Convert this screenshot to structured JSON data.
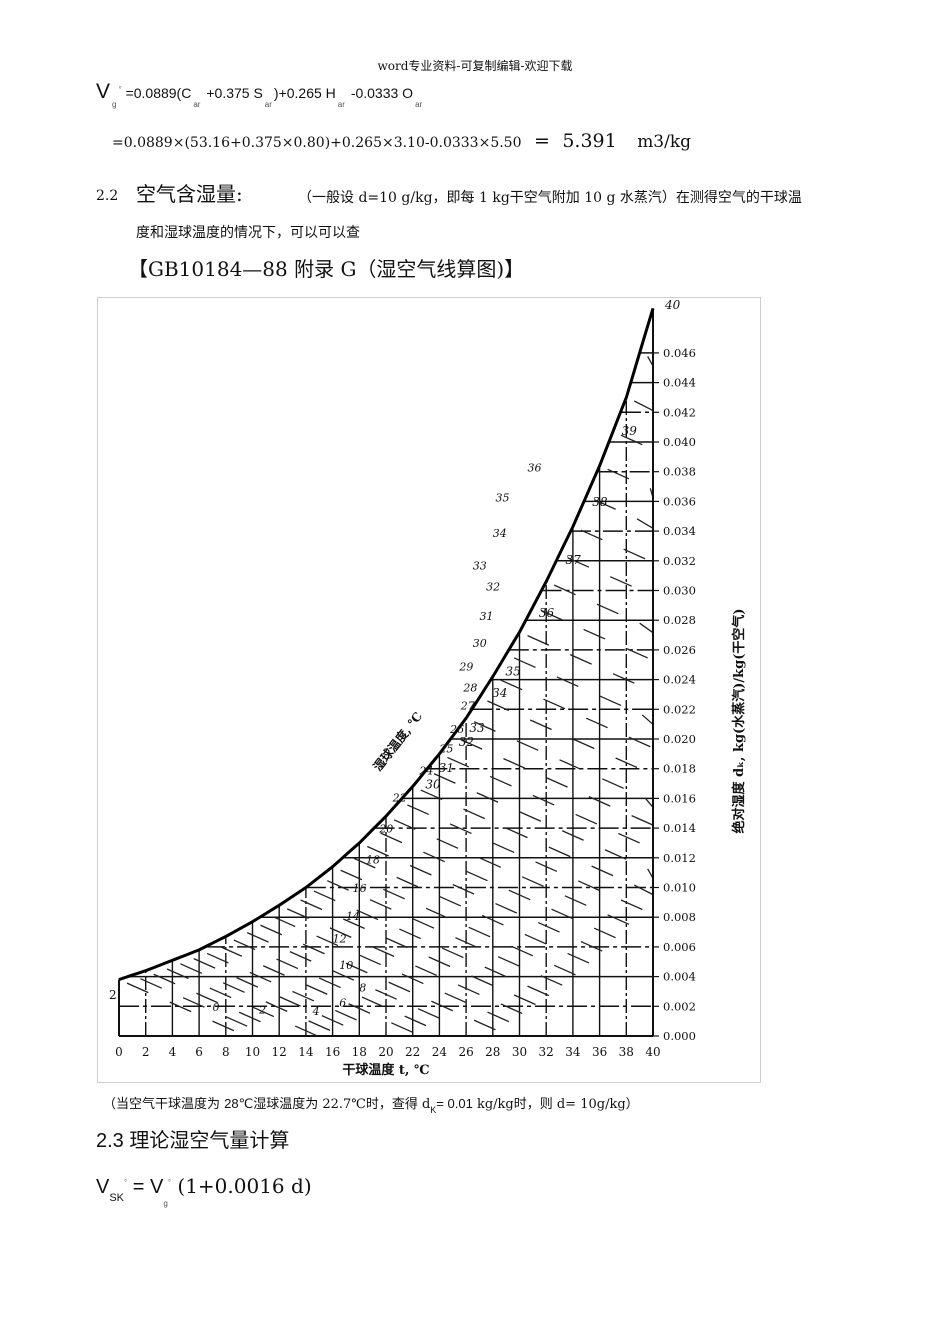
{
  "page_header": "word专业资料-可复制编辑-欢迎下载",
  "formula_1": {
    "lhs": "V",
    "lhs_sub": "g",
    "lhs_sup": "°",
    "expr_parts": [
      "=0.0889(C",
      "+0.375 S",
      ")+0.265 H",
      "-0.0333 O"
    ],
    "sub_ar": "ar"
  },
  "formula_2": {
    "expr": "=0.0889×(53.16+0.375×0.80)+0.265×3.10-0.0333×5.50",
    "equals": "=",
    "result": "5.391",
    "unit": "m3/kg"
  },
  "section_2_2": {
    "number": "2.2",
    "title": "空气含湿量:",
    "description_line1": "（一般设 d=10 g/kg，即每 1 kg干空气附加 10 g 水蒸汽）在测得空气的干球温",
    "description_line2": "度和湿球温度的情况下，可以可以查",
    "reference": "【GB10184—88 附录 G（湿空气线算图)】"
  },
  "chart_data": {
    "type": "line",
    "title": "湿空气线算图 (GB10184—88 附录G)",
    "xlabel": "干球温度 t, ℃",
    "ylabel": "绝对湿度 dₖ, kg(水蒸汽)/kg(干空气)",
    "curve_label": "湿球温度, ℃",
    "x_ticks": [
      0,
      2,
      4,
      6,
      8,
      10,
      12,
      14,
      16,
      18,
      20,
      22,
      24,
      26,
      28,
      30,
      32,
      34,
      36,
      38,
      40
    ],
    "x_tick_labels": [
      "0",
      "2",
      "4",
      "6",
      "8",
      "10",
      "12",
      "14",
      "16",
      "18",
      "20",
      "22",
      "24",
      "26",
      "28",
      "30",
      "32",
      "34",
      "36",
      "38",
      "40"
    ],
    "y_ticks": [
      0.0,
      0.002,
      0.004,
      0.006,
      0.008,
      0.01,
      0.012,
      0.014,
      0.016,
      0.018,
      0.02,
      0.022,
      0.024,
      0.026,
      0.028,
      0.03,
      0.032,
      0.034,
      0.036,
      0.038,
      0.04,
      0.042,
      0.044,
      0.046
    ],
    "y_tick_labels": [
      "0.000",
      "0.002",
      "0.004",
      "0.006",
      "0.008",
      "0.010",
      "0.012",
      "0.014",
      "0.016",
      "0.018",
      "0.020",
      "0.022",
      "0.024",
      "0.026",
      "0.028",
      "0.030",
      "0.032",
      "0.034",
      "0.036",
      "0.038",
      "0.040",
      "0.042",
      "0.044",
      "0.046"
    ],
    "xlim": [
      0,
      40
    ],
    "ylim": [
      0,
      0.049
    ],
    "grid": true,
    "saturation_curve": {
      "name": "湿球温度 (saturation)",
      "x": [
        0,
        2,
        4,
        6,
        8,
        10,
        12,
        14,
        16,
        18,
        20,
        22,
        24,
        26,
        28,
        30,
        32,
        34,
        36,
        38,
        40
      ],
      "y": [
        0.0038,
        0.0044,
        0.0051,
        0.0058,
        0.0067,
        0.0077,
        0.0088,
        0.01,
        0.0114,
        0.013,
        0.0148,
        0.0168,
        0.019,
        0.0214,
        0.0242,
        0.0272,
        0.0306,
        0.0343,
        0.0384,
        0.043,
        0.049
      ]
    },
    "wet_bulb_labels": [
      "2",
      "0",
      "2",
      "4",
      "6",
      "8",
      "10",
      "12",
      "14",
      "16",
      "18",
      "20",
      "22",
      "24",
      "25",
      "26",
      "27",
      "28",
      "29",
      "30",
      "31",
      "32",
      "33",
      "34",
      "35",
      "36",
      "37",
      "38",
      "39",
      "40"
    ],
    "left_marker": "2"
  },
  "caption": {
    "before": "（当空气干球温度为 ",
    "t_dry": "28℃",
    "mid": "湿球温度为 22.7℃时，查得 d",
    "sub": "K",
    "value": "= 0.01",
    "after": "  kg/kg时，则 d=  10g/kg）"
  },
  "section_2_3": {
    "number": "2.3",
    "title": "理论湿空气量计算"
  },
  "formula_3": {
    "lhs": "V",
    "lhs_sub": "SK",
    "sup": "°",
    "eq": " = V",
    "rhs_sub": "g",
    "expr": " (1+0.0016  d)"
  }
}
